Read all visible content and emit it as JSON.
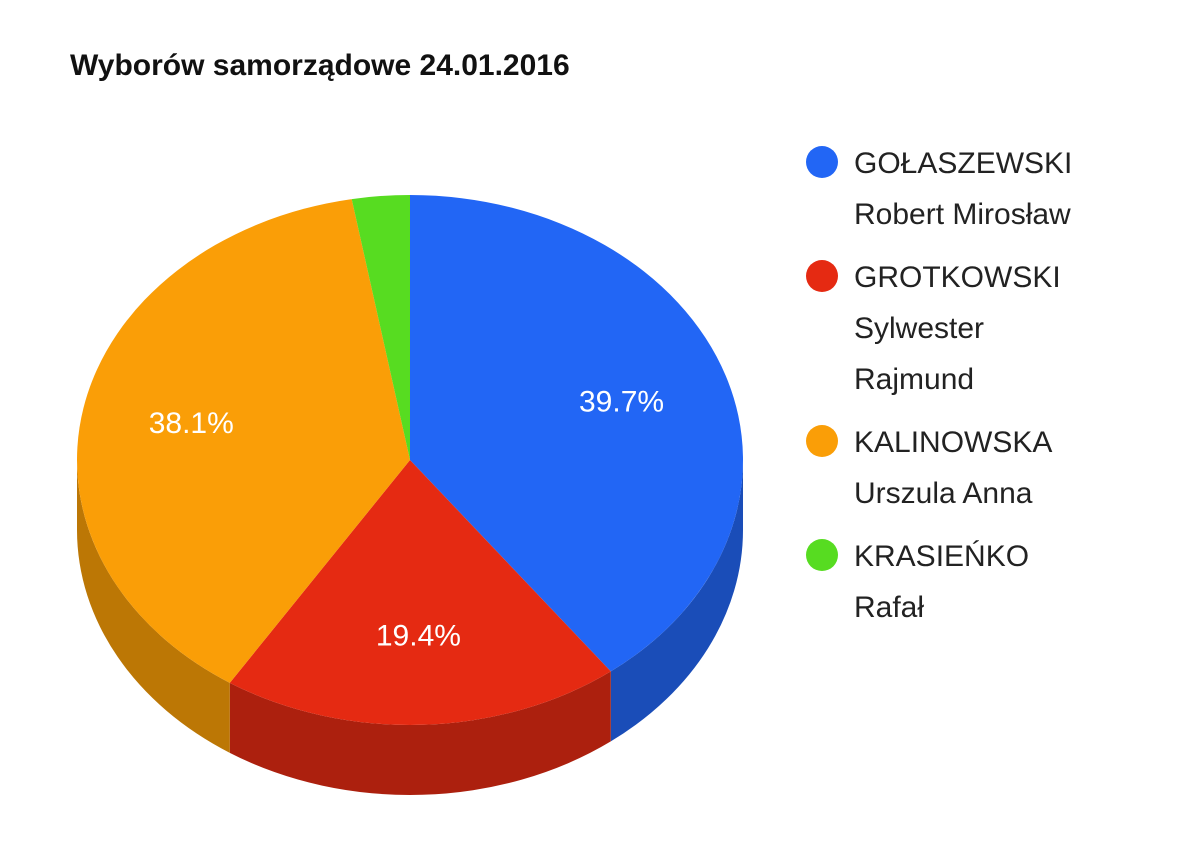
{
  "chart_data": {
    "type": "pie",
    "title": "Wyborów samorządowe 24.01.2016",
    "categories": [
      "GOŁASZEWSKI Robert Mirosław",
      "GROTKOWSKI Sylwester Rajmund",
      "KALINOWSKA Urszula Anna",
      "KRASIEŃKO Rafał"
    ],
    "values": [
      39.7,
      19.4,
      38.1,
      2.8
    ],
    "value_labels": [
      "39.7%",
      "19.4%",
      "38.1%",
      null
    ],
    "colors": [
      "#2266f5",
      "#e52a12",
      "#fa9e07",
      "#57dc21"
    ],
    "legend": "right"
  }
}
